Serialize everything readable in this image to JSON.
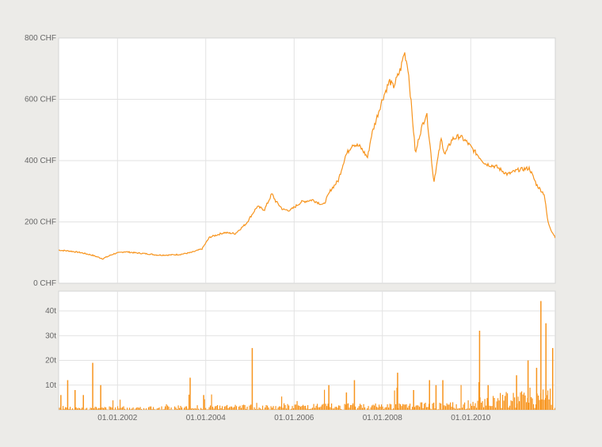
{
  "colors": {
    "background": "#ecebe8",
    "panel": "#ffffff",
    "grid": "#e2e2e2",
    "border": "#d4d4d4",
    "series": "#f7941d"
  },
  "chart_data": [
    {
      "type": "line",
      "title": "",
      "xlabel": "",
      "ylabel": "",
      "ylim": [
        0,
        800
      ],
      "y_ticks": [
        0,
        200,
        400,
        600,
        800
      ],
      "y_tick_labels": [
        "0 CHF",
        "200 CHF",
        "400 CHF",
        "600 CHF",
        "800 CHF"
      ],
      "xlim": [
        "2000-09-01",
        "2011-12-01"
      ],
      "grid": true,
      "series": [
        {
          "x": [
            "2000-09-01",
            "2000-12-01",
            "2001-03-01",
            "2001-06-01",
            "2001-09-01",
            "2001-12-01",
            "2002-03-01",
            "2002-06-01",
            "2002-09-01",
            "2002-12-01",
            "2003-03-01",
            "2003-06-01",
            "2003-09-01",
            "2003-12-01",
            "2004-02-01",
            "2004-06-01",
            "2004-09-01",
            "2004-12-01",
            "2005-03-01",
            "2005-05-01",
            "2005-07-01",
            "2005-08-01",
            "2005-10-01",
            "2005-12-01",
            "2006-03-01",
            "2006-06-01",
            "2006-09-01",
            "2006-11-01",
            "2007-01-01",
            "2007-03-01",
            "2007-05-01",
            "2007-07-01",
            "2007-09-01",
            "2007-10-01",
            "2007-12-01",
            "2008-01-01",
            "2008-03-01",
            "2008-04-01",
            "2008-06-01",
            "2008-07-01",
            "2008-08-01",
            "2008-09-01",
            "2008-10-01",
            "2008-11-01",
            "2008-12-01",
            "2009-01-01",
            "2009-02-01",
            "2009-03-01",
            "2009-04-01",
            "2009-05-01",
            "2009-06-01",
            "2009-08-01",
            "2009-10-01",
            "2009-12-01",
            "2010-02-01",
            "2010-05-01",
            "2010-08-01",
            "2010-11-01",
            "2011-02-01",
            "2011-05-01",
            "2011-07-01",
            "2011-09-01",
            "2011-10-01",
            "2011-11-01",
            "2011-12-01"
          ],
          "values": [
            108,
            105,
            100,
            92,
            80,
            96,
            103,
            99,
            96,
            92,
            92,
            94,
            100,
            112,
            150,
            165,
            162,
            195,
            250,
            240,
            292,
            268,
            240,
            238,
            265,
            272,
            255,
            305,
            335,
            415,
            455,
            445,
            410,
            480,
            560,
            600,
            660,
            640,
            700,
            755,
            700,
            560,
            420,
            480,
            520,
            555,
            440,
            330,
            400,
            470,
            420,
            470,
            480,
            460,
            430,
            390,
            380,
            355,
            370,
            375,
            320,
            290,
            200,
            170,
            150
          ]
        }
      ]
    },
    {
      "type": "bar",
      "title": "",
      "xlabel": "",
      "ylabel": "",
      "ylim": [
        0,
        48
      ],
      "y_ticks": [
        10,
        20,
        30,
        40
      ],
      "y_tick_labels": [
        "10t",
        "20t",
        "30t",
        "40t"
      ],
      "xlim": [
        "2000-09-01",
        "2011-12-01"
      ],
      "x_ticks": [
        "2002-01-01",
        "2004-01-01",
        "2006-01-01",
        "2008-01-01",
        "2010-01-01"
      ],
      "x_tick_labels": [
        "01.01.2002",
        "01.01.2004",
        "01.01.2006",
        "01.01.2008",
        "01.01.2010"
      ],
      "grid": true,
      "series": [
        {
          "x": [
            "2000-09-15",
            "2000-11-10",
            "2001-01-10",
            "2001-03-20",
            "2001-06-05",
            "2001-08-10",
            "2003-08-20",
            "2003-12-10",
            "2005-01-15",
            "2006-10-10",
            "2007-03-05",
            "2007-05-10",
            "2008-05-01",
            "2008-09-10",
            "2009-01-20",
            "2009-03-15",
            "2009-05-10",
            "2010-03-10",
            "2010-05-20",
            "2011-01-10",
            "2011-04-15",
            "2011-06-25",
            "2011-07-30",
            "2011-09-10",
            "2011-11-05"
          ],
          "values": [
            6,
            12,
            8,
            6,
            19,
            10,
            13,
            6,
            25,
            10,
            7,
            12,
            15,
            8,
            12,
            10,
            12,
            32,
            10,
            14,
            20,
            17,
            44,
            35,
            25
          ]
        }
      ]
    }
  ]
}
